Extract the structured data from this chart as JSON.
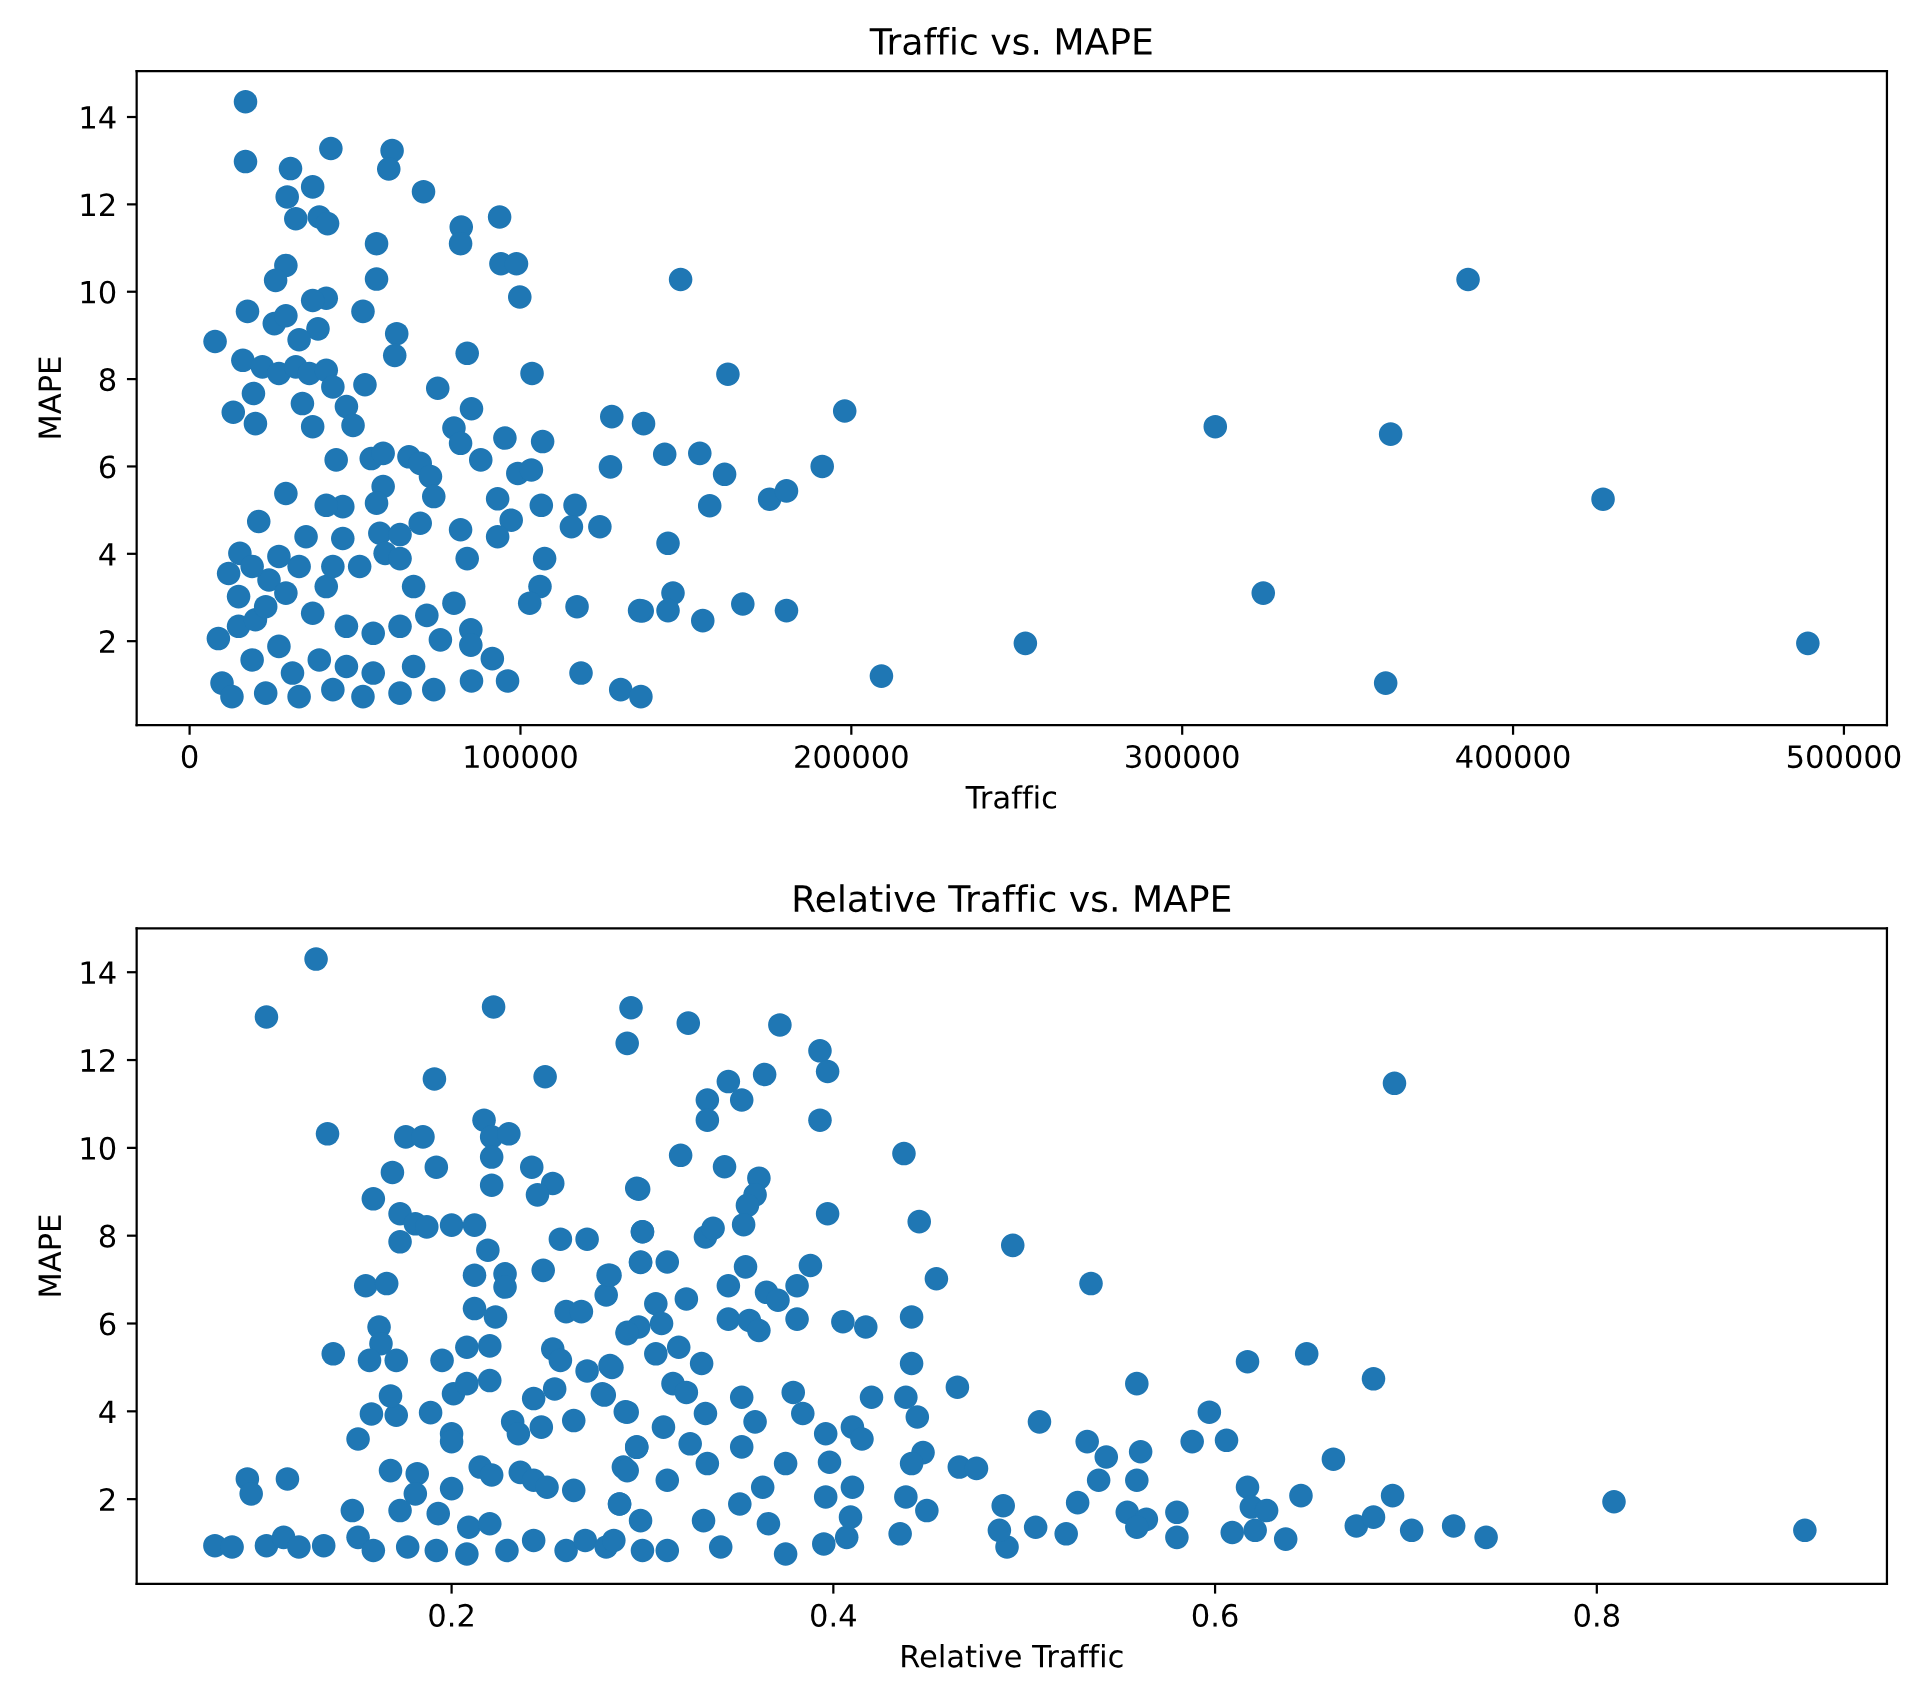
{
  "chart_data": [
    {
      "type": "scatter",
      "title": "Traffic vs. MAPE",
      "xlabel": "Traffic",
      "ylabel": "MAPE",
      "xlim": [
        -16000,
        513000
      ],
      "ylim": [
        0.08,
        15.05
      ],
      "xticks": [
        0,
        100000,
        200000,
        300000,
        400000,
        500000
      ],
      "yticks": [
        2,
        4,
        6,
        8,
        10,
        12,
        14
      ],
      "grid": false,
      "marker": "circle",
      "series": [
        {
          "color": "#1f77b4",
          "x": [
            16900,
            16900,
            30500,
            42700,
            61200,
            60200,
            70700,
            29500,
            37200,
            32100,
            39200,
            41700,
            56500,
            82100,
            81900,
            93700,
            94100,
            98800,
            56500,
            29100,
            26000,
            99800,
            17500,
            52400,
            41300,
            37200,
            25600,
            29100,
            38800,
            33100,
            7700,
            62600,
            62000,
            83900,
            16100,
            22000,
            27000,
            32100,
            36200,
            41300,
            43300,
            53000,
            19300,
            75000,
            103500,
            34100,
            47400,
            85200,
            13200,
            19900,
            37200,
            49400,
            79900,
            81900,
            88000,
            95300,
            106700,
            44300,
            54900,
            58500,
            66300,
            69700,
            72800,
            99200,
            103300,
            127600,
            137200,
            127200,
            58500,
            73800,
            93100,
            106300,
            116500,
            56500,
            46300,
            29100,
            41300,
            69700,
            97200,
            93100,
            115400,
            124000,
            81900,
            83900,
            107300,
            20900,
            57500,
            63600,
            15200,
            35200,
            46300,
            11800,
            24000,
            33100,
            51400,
            59100,
            63600,
            14800,
            67700,
            105900,
            102800,
            117100,
            136800,
            79900,
            71700,
            8700,
            14800,
            19900,
            37200,
            47400,
            55500,
            63600,
            75800,
            85000,
            85000,
            91500,
            96100,
            85200,
            118300,
            130300,
            136400,
            9800,
            12800,
            23000,
            33100,
            43300,
            52400,
            63600,
            73800,
            18900,
            27000,
            31100,
            39200,
            47400,
            55500,
            67700,
            23000,
            29100,
            41300,
            43300,
            27000,
            18900,
            148400,
            386400,
            162700,
            198000,
            310000,
            363000,
            143600,
            154200,
            161700,
            191200,
            157200,
            175300,
            180400,
            427200,
            144600,
            146100,
            324500,
            136000,
            144600,
            155100,
            167200,
            180400,
            252600,
            489100,
            209100,
            361500
          ],
          "values": [
            14.35,
            12.98,
            12.82,
            13.28,
            13.23,
            12.81,
            12.29,
            12.17,
            12.4,
            11.67,
            11.71,
            11.56,
            11.1,
            11.48,
            11.1,
            11.71,
            10.64,
            10.64,
            10.29,
            10.6,
            10.26,
            9.88,
            9.55,
            9.55,
            9.85,
            9.8,
            9.27,
            9.45,
            9.15,
            8.9,
            8.86,
            9.04,
            8.54,
            8.59,
            8.43,
            8.28,
            8.13,
            8.28,
            8.13,
            8.2,
            7.82,
            7.87,
            7.67,
            7.79,
            8.13,
            7.44,
            7.37,
            7.32,
            7.24,
            6.98,
            6.91,
            6.94,
            6.88,
            6.53,
            6.15,
            6.65,
            6.57,
            6.15,
            6.18,
            6.3,
            6.22,
            6.07,
            5.77,
            5.84,
            5.92,
            7.14,
            6.98,
            5.99,
            5.54,
            5.31,
            5.26,
            5.11,
            5.11,
            5.16,
            5.08,
            5.38,
            5.11,
            4.7,
            4.77,
            4.39,
            4.62,
            4.62,
            4.55,
            3.89,
            3.89,
            4.74,
            4.47,
            4.44,
            4.01,
            4.39,
            4.35,
            3.55,
            3.4,
            3.71,
            3.71,
            4.01,
            3.89,
            3.02,
            3.25,
            3.25,
            2.87,
            2.79,
            2.69,
            2.87,
            2.59,
            2.06,
            2.34,
            2.49,
            2.64,
            2.34,
            2.18,
            2.34,
            2.03,
            2.26,
            1.91,
            1.6,
            1.09,
            1.09,
            1.27,
            0.89,
            0.73,
            1.04,
            0.73,
            0.81,
            0.73,
            0.89,
            0.73,
            0.81,
            0.89,
            1.57,
            1.88,
            1.27,
            1.57,
            1.42,
            1.27,
            1.42,
            2.79,
            3.1,
            3.25,
            3.71,
            3.94,
            3.71,
            10.28,
            10.28,
            8.11,
            7.27,
            6.91,
            6.74,
            6.28,
            6.3,
            5.82,
            6.0,
            5.1,
            5.25,
            5.44,
            5.25,
            4.24,
            3.1,
            3.1,
            2.7,
            2.7,
            2.47,
            2.85,
            2.7,
            1.95,
            1.95,
            1.2,
            1.04
          ]
        }
      ]
    },
    {
      "type": "scatter",
      "title": "Relative Traffic vs. MAPE",
      "xlabel": "Relative Traffic",
      "ylabel": "MAPE",
      "xlim": [
        0.035,
        0.952
      ],
      "ylim": [
        0.07,
        15.0
      ],
      "xticks": [
        0.2,
        0.4,
        0.6,
        0.8
      ],
      "yticks": [
        2,
        4,
        6,
        8,
        10,
        12,
        14
      ],
      "grid": false,
      "marker": "circle",
      "series": [
        {
          "color": "#1f77b4",
          "x": [
            0.129,
            0.103,
            0.222,
            0.191,
            0.249,
            0.135,
            0.176,
            0.185,
            0.217,
            0.221,
            0.23,
            0.221,
            0.192,
            0.169,
            0.242,
            0.253,
            0.245,
            0.221,
            0.298,
            0.159,
            0.173,
            0.181,
            0.187,
            0.2,
            0.212,
            0.173,
            0.257,
            0.271,
            0.3,
            0.219,
            0.228,
            0.248,
            0.212,
            0.282,
            0.299,
            0.281,
            0.155,
            0.166,
            0.228,
            0.212,
            0.223,
            0.26,
            0.268,
            0.162,
            0.163,
            0.157,
            0.171,
            0.138,
            0.195,
            0.208,
            0.22,
            0.22,
            0.253,
            0.257,
            0.292,
            0.298,
            0.271,
            0.284,
            0.201,
            0.208,
            0.254,
            0.28,
            0.243,
            0.158,
            0.171,
            0.189,
            0.291,
            0.168,
            0.2,
            0.2,
            0.151,
            0.232,
            0.235,
            0.247,
            0.264,
            0.297,
            0.215,
            0.221,
            0.168,
            0.182,
            0.236,
            0.243,
            0.25,
            0.29,
            0.093,
            0.095,
            0.114,
            0.2,
            0.181,
            0.193,
            0.173,
            0.148,
            0.209,
            0.264,
            0.288,
            0.076,
            0.085,
            0.103,
            0.112,
            0.12,
            0.133,
            0.151,
            0.159,
            0.177,
            0.192,
            0.208,
            0.22,
            0.229,
            0.243,
            0.26,
            0.27,
            0.281,
            0.3,
            0.294,
            0.292,
            0.324,
            0.372,
            0.393,
            0.397,
            0.364,
            0.345,
            0.334,
            0.352,
            0.334,
            0.393,
            0.437,
            0.32,
            0.343,
            0.297,
            0.361,
            0.359,
            0.355,
            0.353,
            0.333,
            0.337,
            0.397,
            0.445,
            0.3,
            0.494,
            0.299,
            0.313,
            0.535,
            0.454,
            0.388,
            0.354,
            0.345,
            0.381,
            0.365,
            0.371,
            0.323,
            0.283,
            0.307,
            0.31,
            0.345,
            0.356,
            0.361,
            0.381,
            0.405,
            0.417,
            0.441,
            0.292,
            0.307,
            0.319,
            0.331,
            0.283,
            0.441,
            0.617,
            0.279,
            0.316,
            0.323,
            0.352,
            0.379,
            0.42,
            0.438,
            0.465,
            0.559,
            0.292,
            0.333,
            0.359,
            0.384,
            0.444,
            0.508,
            0.311,
            0.41,
            0.396,
            0.597,
            0.588,
            0.606,
            0.533,
            0.543,
            0.561,
            0.297,
            0.325,
            0.352,
            0.375,
            0.415,
            0.447,
            0.441,
            0.466,
            0.475,
            0.334,
            0.292,
            0.398,
            0.539,
            0.559,
            0.313,
            0.41,
            0.363,
            0.288,
            0.351,
            0.396,
            0.438,
            0.449,
            0.489,
            0.528,
            0.617,
            0.619,
            0.506,
            0.491,
            0.522,
            0.487,
            0.435,
            0.554,
            0.564,
            0.559,
            0.58,
            0.58,
            0.609,
            0.285,
            0.313,
            0.341,
            0.375,
            0.395,
            0.407,
            0.409,
            0.332,
            0.366,
            0.299,
            0.694,
            0.648,
            0.683,
            0.662,
            0.645,
            0.693,
            0.809,
            0.627,
            0.621,
            0.637,
            0.674,
            0.683,
            0.703,
            0.725,
            0.742,
            0.909
          ],
          "values": [
            14.3,
            12.98,
            13.21,
            11.57,
            11.62,
            10.32,
            10.25,
            10.25,
            10.63,
            10.25,
            10.32,
            9.79,
            9.56,
            9.44,
            9.56,
            9.19,
            8.93,
            9.15,
            9.06,
            8.84,
            8.5,
            8.27,
            8.2,
            8.24,
            8.24,
            7.86,
            7.92,
            7.92,
            8.09,
            7.67,
            7.13,
            7.21,
            7.1,
            7.1,
            7.39,
            6.65,
            6.86,
            6.91,
            6.83,
            6.34,
            6.15,
            6.27,
            6.27,
            5.92,
            5.54,
            5.16,
            5.16,
            5.31,
            5.16,
            5.46,
            5.49,
            4.7,
            5.42,
            5.16,
            5.8,
            5.92,
            4.92,
            5.0,
            4.4,
            4.63,
            4.51,
            4.37,
            4.29,
            3.94,
            3.91,
            3.97,
            3.99,
            4.35,
            3.49,
            3.31,
            3.37,
            3.76,
            3.49,
            3.64,
            3.79,
            3.18,
            2.73,
            2.55,
            2.65,
            2.58,
            2.61,
            2.43,
            2.27,
            2.73,
            2.46,
            2.12,
            2.46,
            2.24,
            2.12,
            1.67,
            1.74,
            1.74,
            1.36,
            2.2,
            1.89,
            0.94,
            0.91,
            0.94,
            1.13,
            0.91,
            0.94,
            1.13,
            0.83,
            0.91,
            0.83,
            0.75,
            1.44,
            0.83,
            1.06,
            0.83,
            1.06,
            0.91,
            0.83,
            13.19,
            12.38,
            12.84,
            12.8,
            12.21,
            11.74,
            11.67,
            11.51,
            11.09,
            11.09,
            10.63,
            10.63,
            9.87,
            9.83,
            9.57,
            9.08,
            9.31,
            8.93,
            8.69,
            8.25,
            7.97,
            8.17,
            8.5,
            8.32,
            8.09,
            7.78,
            7.4,
            7.4,
            6.91,
            7.02,
            7.32,
            7.29,
            6.86,
            6.86,
            6.71,
            6.53,
            6.56,
            7.1,
            6.45,
            6.0,
            6.1,
            6.07,
            5.84,
            6.1,
            6.04,
            5.92,
            6.15,
            5.77,
            5.31,
            5.46,
            5.09,
            5.04,
            5.09,
            5.13,
            4.4,
            4.63,
            4.43,
            4.32,
            4.43,
            4.32,
            4.32,
            4.55,
            4.63,
            3.98,
            3.95,
            3.76,
            3.95,
            3.87,
            3.76,
            3.64,
            3.64,
            3.49,
            3.98,
            3.31,
            3.34,
            3.31,
            2.96,
            3.08,
            3.19,
            3.26,
            3.19,
            2.81,
            3.37,
            3.06,
            2.81,
            2.73,
            2.7,
            2.81,
            2.65,
            2.84,
            2.43,
            2.43,
            2.43,
            2.27,
            2.27,
            1.89,
            1.89,
            2.05,
            2.05,
            1.74,
            1.85,
            1.92,
            2.27,
            1.82,
            1.36,
            0.91,
            1.21,
            1.29,
            1.21,
            1.7,
            1.54,
            1.36,
            1.7,
            1.13,
            1.24,
            1.06,
            0.83,
            0.91,
            0.75,
            0.98,
            1.13,
            1.59,
            1.51,
            1.44,
            1.51,
            11.47,
            5.31,
            4.74,
            2.91,
            2.08,
            2.08,
            1.94,
            1.74,
            1.29,
            1.09,
            1.39,
            1.59,
            1.29,
            1.39,
            1.13,
            1.29
          ]
        }
      ]
    }
  ]
}
